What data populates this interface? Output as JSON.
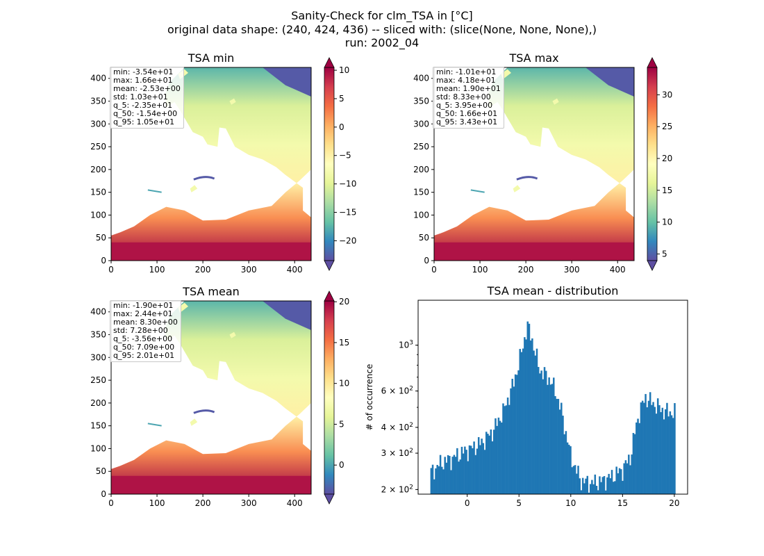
{
  "figure": {
    "title_lines": [
      "Sanity-Check for clm_TSA in [°C]",
      "original data shape: (240, 424, 436) -- sliced with: (slice(None, None, None),)",
      "run: 2002_04"
    ]
  },
  "chart_data": [
    {
      "type": "heatmap",
      "title": "TSA min",
      "x_ticks": [
        0,
        100,
        200,
        300,
        400
      ],
      "y_ticks": [
        0,
        50,
        100,
        150,
        200,
        250,
        300,
        350,
        400
      ],
      "xlim": [
        0,
        436
      ],
      "ylim": [
        0,
        424
      ],
      "colormap": "Spectral_r",
      "colorbar": {
        "vmin": -23.5,
        "vmax": 10.5,
        "ticks": [
          10,
          5,
          0,
          -5,
          -10,
          -15,
          -20
        ],
        "extend": "both"
      },
      "stats": [
        "min: -3.54e+01",
        "max: 1.66e+01",
        "mean: -2.53e+00",
        "std: 1.03e+01",
        "q_5: -2.35e+01",
        "q_50: -1.54e+00",
        "q_95: 1.05e+01"
      ]
    },
    {
      "type": "heatmap",
      "title": "TSA max",
      "x_ticks": [
        0,
        100,
        200,
        300,
        400
      ],
      "y_ticks": [
        0,
        50,
        100,
        150,
        200,
        250,
        300,
        350,
        400
      ],
      "xlim": [
        0,
        436
      ],
      "ylim": [
        0,
        424
      ],
      "colormap": "Spectral_r",
      "colorbar": {
        "vmin": 3.95,
        "vmax": 34.3,
        "ticks": [
          30,
          25,
          20,
          15,
          10,
          5
        ],
        "extend": "both"
      },
      "stats": [
        "min: -1.01e+01",
        "max: 4.18e+01",
        "mean: 1.90e+01",
        "std: 8.33e+00",
        "q_5: 3.95e+00",
        "q_50: 1.66e+01",
        "q_95: 3.43e+01"
      ]
    },
    {
      "type": "heatmap",
      "title": "TSA mean",
      "x_ticks": [
        0,
        100,
        200,
        300,
        400
      ],
      "y_ticks": [
        0,
        50,
        100,
        150,
        200,
        250,
        300,
        350,
        400
      ],
      "xlim": [
        0,
        436
      ],
      "ylim": [
        0,
        424
      ],
      "colormap": "Spectral_r",
      "colorbar": {
        "vmin": -3.56,
        "vmax": 20.1,
        "ticks": [
          20,
          15,
          10,
          5,
          0
        ],
        "extend": "both"
      },
      "stats": [
        "min: -1.90e+01",
        "max: 2.44e+01",
        "mean: 8.30e+00",
        "std: 7.28e+00",
        "q_5: -3.56e+00",
        "q_50: 7.09e+00",
        "q_95: 2.01e+01"
      ]
    },
    {
      "type": "bar",
      "title": "TSA mean - distribution",
      "ylabel": "# of occurrence",
      "yscale": "log",
      "xlim": [
        -4.74,
        21.28
      ],
      "ylim": [
        190,
        1650
      ],
      "x_ticks": [
        0,
        5,
        10,
        15,
        20
      ],
      "y_ticks": [
        {
          "value": 200,
          "base": "2",
          "exp": "2"
        },
        {
          "value": 300,
          "base": "3",
          "exp": "2"
        },
        {
          "value": 400,
          "base": "4",
          "exp": "2"
        },
        {
          "value": 600,
          "base": "6",
          "exp": "2"
        },
        {
          "value": 1000,
          "base": "10",
          "exp": "3"
        }
      ],
      "bin_start": -3.56,
      "bin_end": 20.1,
      "bar_color": "#1f77b4",
      "profile": [
        [
          -3.56,
          240
        ],
        [
          -2.5,
          270
        ],
        [
          -1.5,
          282
        ],
        [
          -0.5,
          302
        ],
        [
          0.5,
          318
        ],
        [
          1.5,
          340
        ],
        [
          2.5,
          385
        ],
        [
          3.0,
          430
        ],
        [
          3.5,
          480
        ],
        [
          4.0,
          560
        ],
        [
          4.5,
          660
        ],
        [
          5.0,
          820
        ],
        [
          5.4,
          1000
        ],
        [
          5.8,
          1240
        ],
        [
          6.2,
          1100
        ],
        [
          6.6,
          900
        ],
        [
          7.0,
          760
        ],
        [
          7.5,
          720
        ],
        [
          8.0,
          680
        ],
        [
          8.5,
          600
        ],
        [
          9.0,
          500
        ],
        [
          9.5,
          380
        ],
        [
          10.0,
          290
        ],
        [
          10.5,
          250
        ],
        [
          11.0,
          220
        ],
        [
          12.0,
          215
        ],
        [
          13.0,
          220
        ],
        [
          14.0,
          232
        ],
        [
          15.0,
          250
        ],
        [
          15.8,
          290
        ],
        [
          16.5,
          450
        ],
        [
          17.2,
          560
        ],
        [
          18.0,
          520
        ],
        [
          19.0,
          480
        ],
        [
          20.1,
          470
        ]
      ]
    }
  ]
}
